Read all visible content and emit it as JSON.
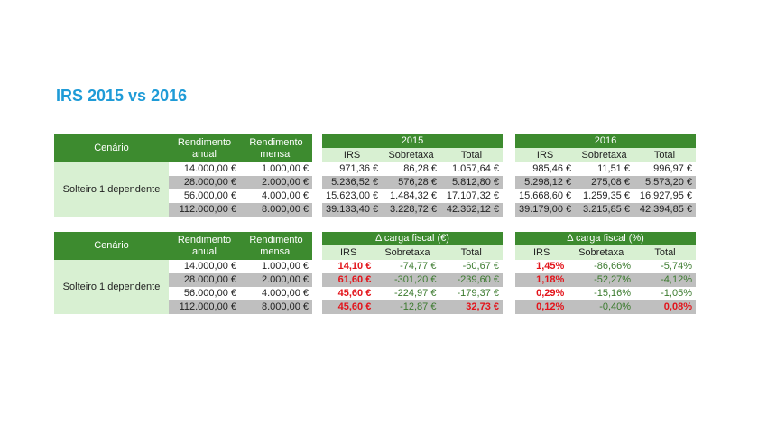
{
  "title": "IRS 2015 vs 2016",
  "colors": {
    "header_green": "#3d8b2f",
    "light_green": "#d8f0d2",
    "stripe_grey": "#bfbfbf",
    "increase_red": "#e3141b",
    "decrease_green": "#3b7a2e"
  },
  "blocks": [
    {
      "left": {
        "headers": [
          "Cenário",
          "Rendimento anual",
          "Rendimento mensal"
        ],
        "scenario": "Solteiro 1 dependente",
        "rows": [
          [
            "14.000,00 €",
            "1.000,00 €"
          ],
          [
            "28.000,00 €",
            "2.000,00 €"
          ],
          [
            "56.000,00 €",
            "4.000,00 €"
          ],
          [
            "112.000,00 €",
            "8.000,00 €"
          ]
        ]
      },
      "groups": [
        {
          "title": "2015",
          "cols": [
            "IRS",
            "Sobretaxa",
            "Total"
          ],
          "rows": [
            [
              "971,36 €",
              "86,28 €",
              "1.057,64 €"
            ],
            [
              "5.236,52 €",
              "576,28 €",
              "5.812,80 €"
            ],
            [
              "15.623,00 €",
              "1.484,32 €",
              "17.107,32 €"
            ],
            [
              "39.133,40 €",
              "3.228,72 €",
              "42.362,12 €"
            ]
          ]
        },
        {
          "title": "2016",
          "cols": [
            "IRS",
            "Sobretaxa",
            "Total"
          ],
          "rows": [
            [
              "985,46 €",
              "11,51 €",
              "996,97 €"
            ],
            [
              "5.298,12 €",
              "275,08 €",
              "5.573,20 €"
            ],
            [
              "15.668,60 €",
              "1.259,35 €",
              "16.927,95 €"
            ],
            [
              "39.179,00 €",
              "3.215,85 €",
              "42.394,85 €"
            ]
          ]
        }
      ]
    },
    {
      "left": {
        "headers": [
          "Cenário",
          "Rendimento anual",
          "Rendimento mensal"
        ],
        "scenario": "Solteiro 1 dependente",
        "rows": [
          [
            "14.000,00 €",
            "1.000,00 €"
          ],
          [
            "28.000,00 €",
            "2.000,00 €"
          ],
          [
            "56.000,00 €",
            "4.000,00 €"
          ],
          [
            "112.000,00 €",
            "8.000,00 €"
          ]
        ]
      },
      "groups": [
        {
          "title": "Δ carga fiscal (€)",
          "cols": [
            "IRS",
            "Sobretaxa",
            "Total"
          ],
          "rows": [
            [
              "14,10 €",
              "-74,77 €",
              "-60,67 €"
            ],
            [
              "61,60 €",
              "-301,20 €",
              "-239,60 €"
            ],
            [
              "45,60 €",
              "-224,97 €",
              "-179,37 €"
            ],
            [
              "45,60 €",
              "-12,87 €",
              "32,73 €"
            ]
          ]
        },
        {
          "title": "Δ carga fiscal (%)",
          "cols": [
            "IRS",
            "Sobretaxa",
            "Total"
          ],
          "rows": [
            [
              "1,45%",
              "-86,66%",
              "-5,74%"
            ],
            [
              "1,18%",
              "-52,27%",
              "-4,12%"
            ],
            [
              "0,29%",
              "-15,16%",
              "-1,05%"
            ],
            [
              "0,12%",
              "-0,40%",
              "0,08%"
            ]
          ]
        }
      ]
    }
  ]
}
